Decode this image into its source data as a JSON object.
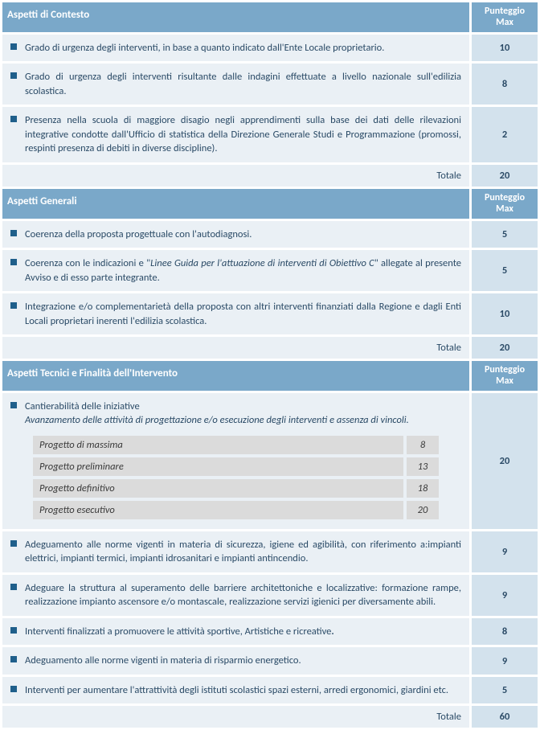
{
  "sections": [
    {
      "title": "Aspetti di Contesto",
      "score_header": "Punteggio Max",
      "rows": [
        {
          "text": "Grado di urgenza degli interventi, in base a quanto indicato dall'Ente Locale proprietario.",
          "score": "10"
        },
        {
          "text": "Grado di urgenza degli interventi risultante dalle indagini effettuate a livello nazionale sull'edilizia scolastica.",
          "score": "8"
        },
        {
          "text": "Presenza nella scuola di maggiore disagio negli apprendimenti sulla base dei dati delle rilevazioni integrative condotte dall'Ufficio di statistica della Direzione Generale Studi e Programmazione (promossi, respinti presenza di debiti in diverse discipline).",
          "score": "2"
        }
      ],
      "total_label": "Totale",
      "total": "20"
    },
    {
      "title": "Aspetti Generali",
      "score_header": "Punteggio Max",
      "rows": [
        {
          "text": "Coerenza della proposta progettuale con l'autodiagnosi.",
          "score": "5"
        },
        {
          "text_pre": "Coerenza con le indicazioni e \"",
          "text_italic": "Linee Guida per l'attuazione di interventi di Obiettivo C",
          "text_post": "\" allegate al presente Avviso e di esso parte integrante.",
          "score": "5"
        },
        {
          "text": "Integrazione e/o complementarietà della proposta con altri interventi finanziati dalla Regione e dagli Enti Locali proprietari inerenti l'edilizia scolastica.",
          "score": "10"
        }
      ],
      "total_label": "Totale",
      "total": "20"
    },
    {
      "title": "Aspetti Tecnici e Finalità dell'Intervento",
      "score_header": "Punteggio Max",
      "tech_row": {
        "title": "Cantierabilità delle iniziative",
        "subtitle": "Avanzamento delle attività di progettazione e/o esecuzione degli interventi e assenza di vincoli.",
        "items": [
          {
            "label": "Progetto di massima",
            "val": "8"
          },
          {
            "label": "Progetto preliminare",
            "val": "13"
          },
          {
            "label": "Progetto definitivo",
            "val": "18"
          },
          {
            "label": "Progetto esecutivo",
            "val": "20"
          }
        ],
        "score": "20"
      },
      "rows": [
        {
          "text": "Adeguamento alle norme vigenti in materia di sicurezza, igiene ed agibilità, con riferimento a:impianti elettrici, impianti termici, impianti idrosanitari e impianti antincendio.",
          "score": "9"
        },
        {
          "text": "Adeguare la struttura al superamento delle barriere architettoniche e localizzative: formazione rampe, realizzazione impianto ascensore e/o montascale, realizzazione servizi igienici per diversamente abili.",
          "score": "9"
        },
        {
          "text_pre": "Interventi finalizzati a promuovere le attività sportive, Artistiche e ricreative",
          "text_bold": ".",
          "score": "8"
        },
        {
          "text": "Adeguamento alle norme vigenti in materia di  risparmio energetico.",
          "score": "9"
        },
        {
          "text": "Interventi per aumentare l'attrattività degli istituti scolastici  spazi esterni, arredi ergonomici, giardini etc.",
          "score": "5"
        }
      ],
      "total_label": "Totale",
      "total": "60"
    }
  ]
}
